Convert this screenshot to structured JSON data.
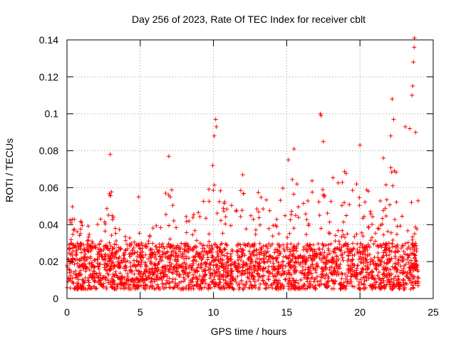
{
  "chart_data": {
    "type": "scatter",
    "title": "Day 256 of 2023, Rate Of TEC Index for receiver cblt",
    "xlabel": "GPS time / hours",
    "ylabel": "ROTI / TECUs",
    "xlim": [
      0,
      25
    ],
    "ylim": [
      0,
      0.14
    ],
    "xticks": [
      "0",
      "5",
      "10",
      "15",
      "20",
      "25"
    ],
    "yticks": [
      "0",
      "0.02",
      "0.04",
      "0.06",
      "0.08",
      "0.1",
      "0.12",
      "0.14"
    ],
    "xtick_values": [
      0,
      5,
      10,
      15,
      20,
      25
    ],
    "ytick_values": [
      0,
      0.02,
      0.04,
      0.06,
      0.08,
      0.1,
      0.12,
      0.14
    ],
    "grid": true,
    "marker": "+",
    "color": "#ff0000",
    "x_extent": [
      0,
      24
    ],
    "baseline_range": [
      0.005,
      0.03
    ],
    "envelope": {
      "x": [
        0,
        0.3,
        0.5,
        1,
        1.5,
        2,
        2.5,
        3,
        3.5,
        4,
        4.5,
        5,
        5.5,
        6,
        6.5,
        7,
        7.5,
        8,
        8.5,
        9,
        9.5,
        10,
        10.5,
        11,
        11.5,
        12,
        12.5,
        13,
        13.5,
        14,
        14.5,
        15,
        15.5,
        16,
        16.5,
        17,
        17.5,
        18,
        18.5,
        19,
        19.5,
        20,
        20.5,
        21,
        21.5,
        22,
        22.5,
        23,
        23.5,
        24
      ],
      "y": [
        0.035,
        0.055,
        0.05,
        0.045,
        0.04,
        0.04,
        0.045,
        0.06,
        0.04,
        0.045,
        0.035,
        0.04,
        0.035,
        0.04,
        0.045,
        0.07,
        0.045,
        0.045,
        0.05,
        0.05,
        0.055,
        0.07,
        0.06,
        0.055,
        0.065,
        0.065,
        0.06,
        0.065,
        0.06,
        0.06,
        0.06,
        0.065,
        0.065,
        0.065,
        0.06,
        0.07,
        0.06,
        0.07,
        0.065,
        0.07,
        0.06,
        0.07,
        0.06,
        0.06,
        0.065,
        0.07,
        0.075,
        0.07,
        0.075,
        0.06
      ]
    },
    "spikes": [
      {
        "x": 2.95,
        "y": 0.078
      },
      {
        "x": 4.9,
        "y": 0.055
      },
      {
        "x": 6.95,
        "y": 0.077
      },
      {
        "x": 10.15,
        "y": 0.097
      },
      {
        "x": 10.2,
        "y": 0.093
      },
      {
        "x": 10.05,
        "y": 0.088
      },
      {
        "x": 9.95,
        "y": 0.072
      },
      {
        "x": 12.0,
        "y": 0.067
      },
      {
        "x": 15.1,
        "y": 0.075
      },
      {
        "x": 15.5,
        "y": 0.081
      },
      {
        "x": 17.3,
        "y": 0.1
      },
      {
        "x": 17.35,
        "y": 0.099
      },
      {
        "x": 17.5,
        "y": 0.085
      },
      {
        "x": 20.0,
        "y": 0.083
      },
      {
        "x": 21.6,
        "y": 0.076
      },
      {
        "x": 22.2,
        "y": 0.108
      },
      {
        "x": 22.3,
        "y": 0.097
      },
      {
        "x": 22.1,
        "y": 0.088
      },
      {
        "x": 23.1,
        "y": 0.093
      },
      {
        "x": 23.4,
        "y": 0.092
      },
      {
        "x": 23.6,
        "y": 0.115
      },
      {
        "x": 23.65,
        "y": 0.128
      },
      {
        "x": 23.7,
        "y": 0.136
      },
      {
        "x": 23.72,
        "y": 0.141
      },
      {
        "x": 23.55,
        "y": 0.11
      },
      {
        "x": 23.8,
        "y": 0.09
      }
    ]
  }
}
